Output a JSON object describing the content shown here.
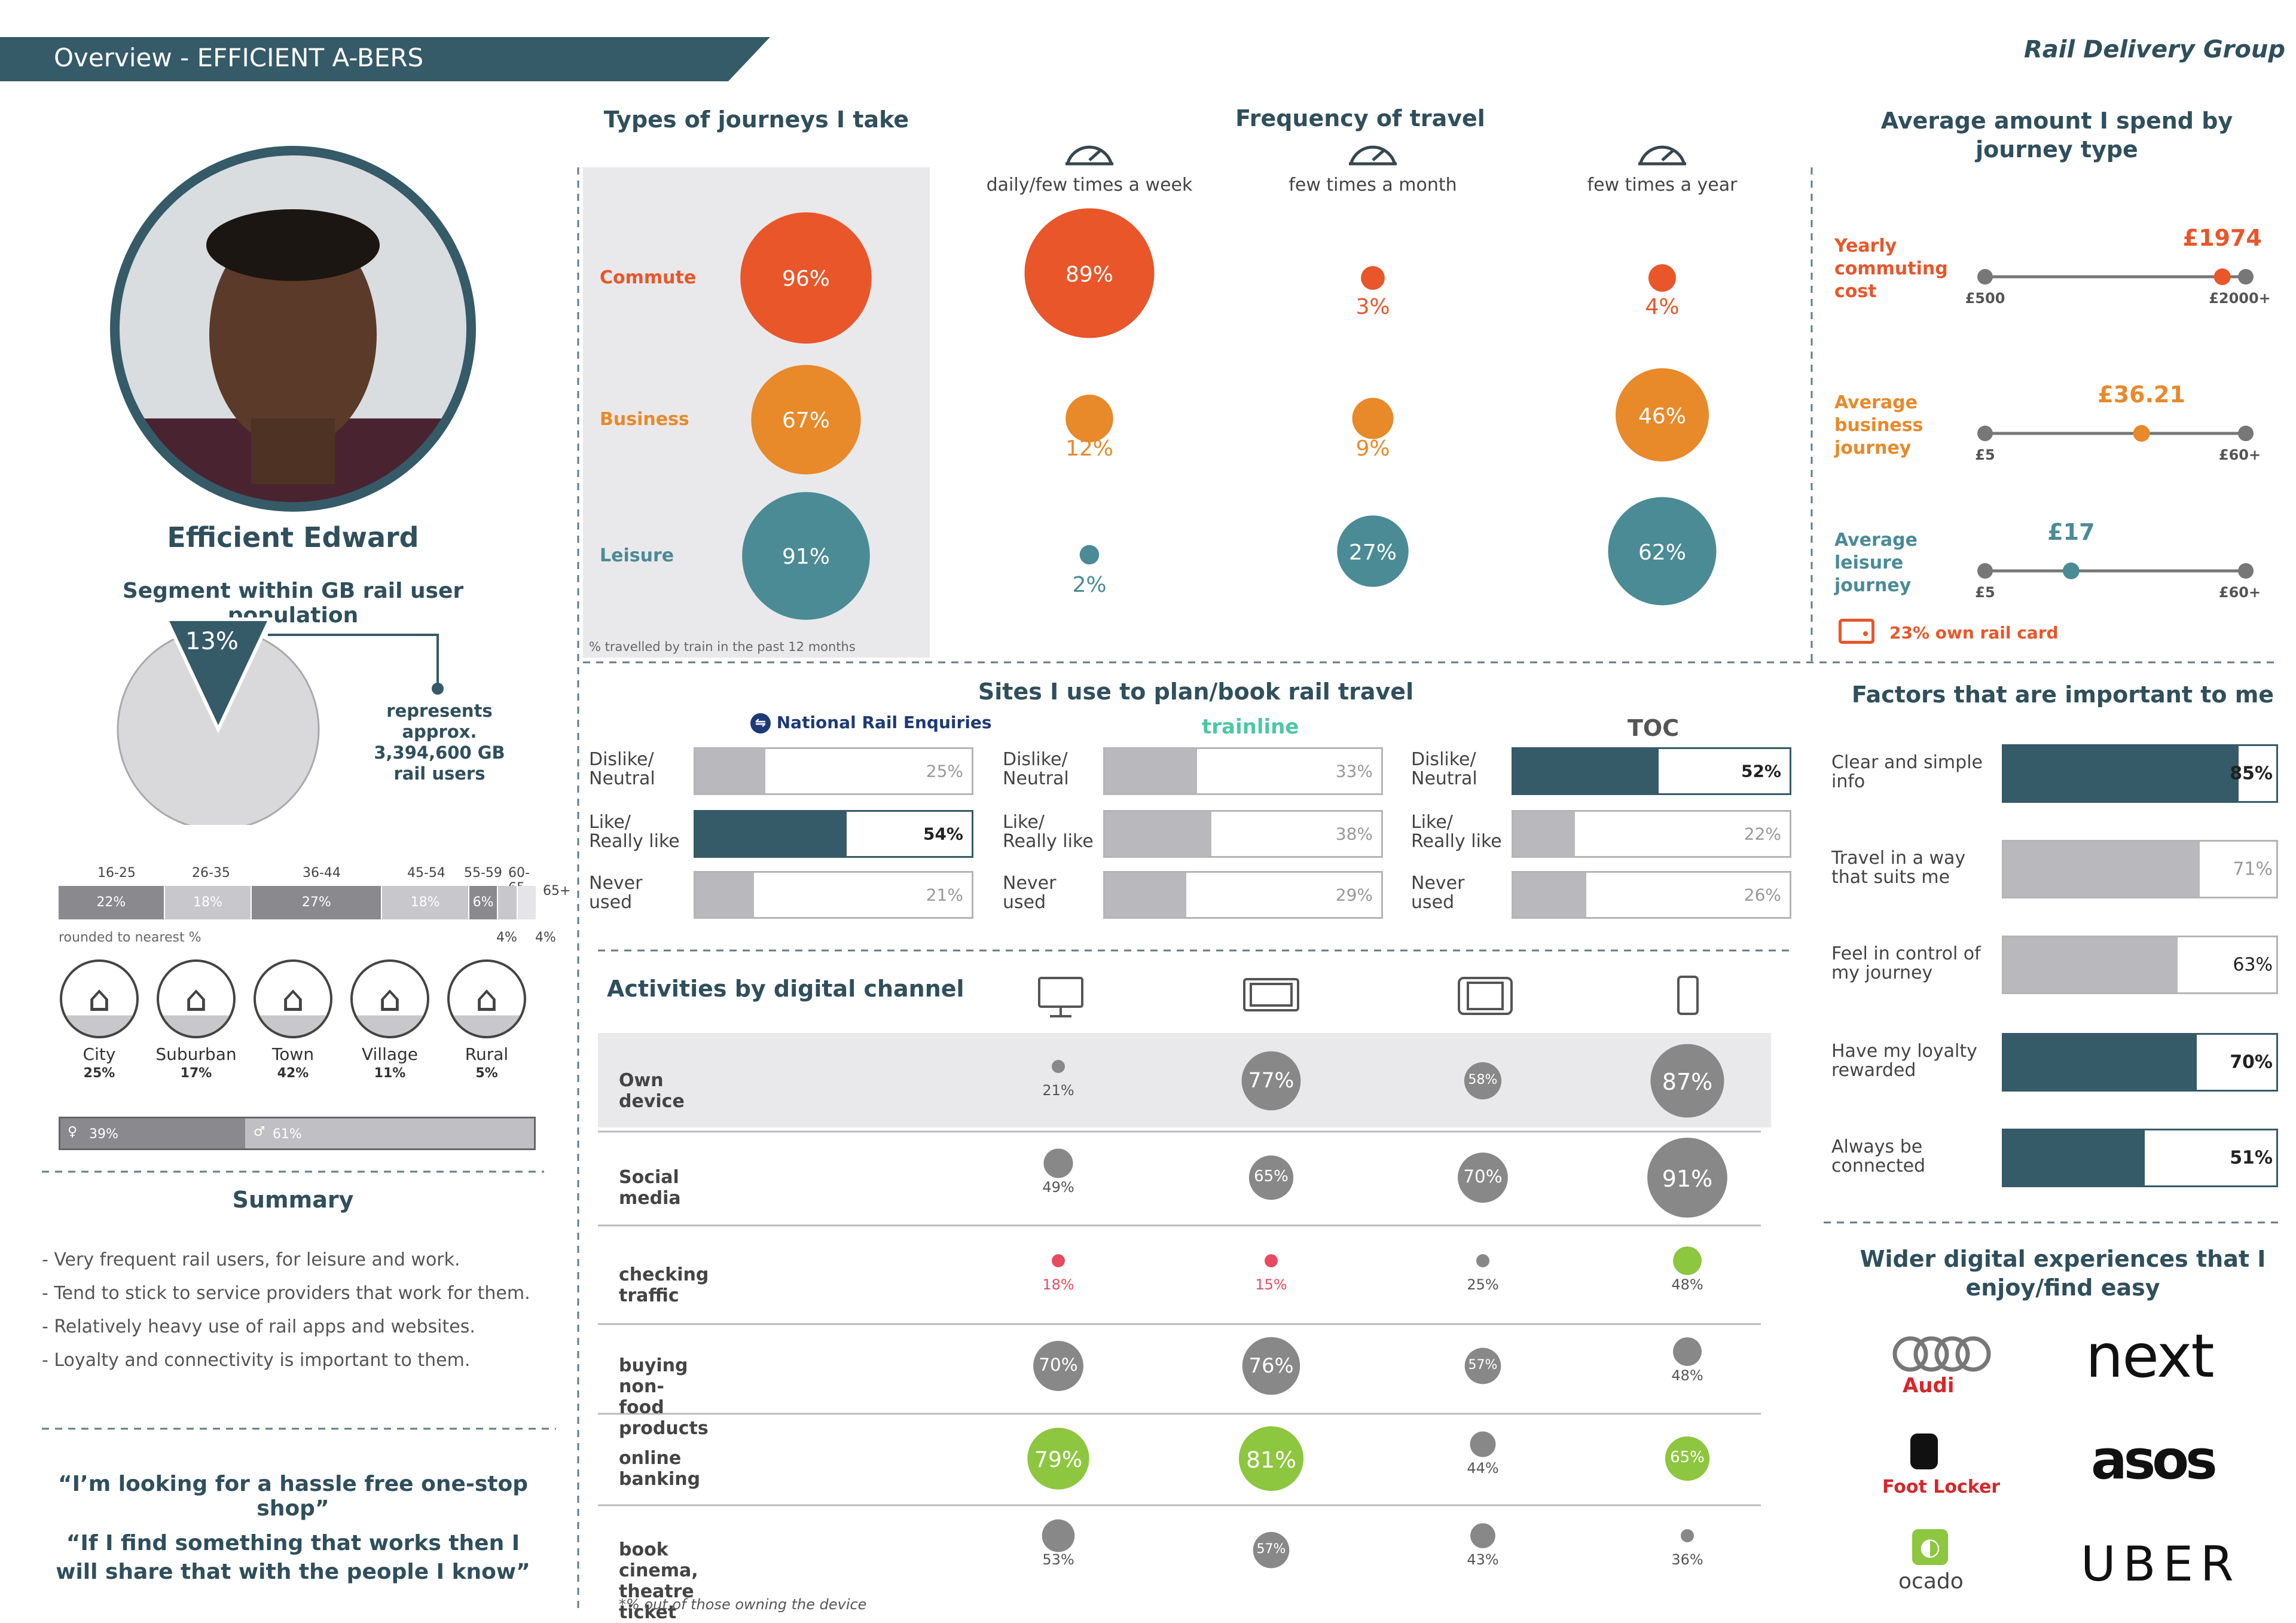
{
  "header": {
    "title": "Overview - EFFICIENT A-BERS",
    "brand": "Rail Delivery Group"
  },
  "persona": {
    "name": "Efficient Edward",
    "segment_title": "Segment within GB rail user population",
    "segment_pct": "13%",
    "segment_value": 13,
    "represents": "represents approx. 3,394,600 GB rail users",
    "age_labels": [
      "16-25",
      "26-35",
      "36-44",
      "45-54",
      "55-59",
      "60-65",
      "65+"
    ],
    "age_values": [
      "22%",
      "18%",
      "27%",
      "18%",
      "6%",
      "4%",
      "4%"
    ],
    "age_fractions": [
      22,
      18,
      27,
      18,
      6,
      4,
      4
    ],
    "rounded_note": "rounded to nearest %",
    "areas": [
      {
        "label": "City",
        "pct": "25%"
      },
      {
        "label": "Suburban",
        "pct": "17%"
      },
      {
        "label": "Town",
        "pct": "42%"
      },
      {
        "label": "Village",
        "pct": "11%"
      },
      {
        "label": "Rural",
        "pct": "5%"
      }
    ],
    "gender": {
      "female": "39%",
      "male": "61%",
      "female_value": 39
    }
  },
  "summary": {
    "title": "Summary",
    "points": [
      "- Very frequent rail users, for leisure and work.",
      "- Tend to stick to  service providers that work for them.",
      "- Relatively heavy use of rail apps and websites.",
      "- Loyalty and connectivity is important to them."
    ],
    "quote1": "“I’m looking for a hassle free one-stop shop”",
    "quote2": "“If I find something that works then I will share that with the people I know”"
  },
  "journeys": {
    "title": "Types of journeys I take",
    "note": "% travelled by train in the past 12 months",
    "rows": [
      {
        "label": "Commute",
        "pct": "96%",
        "value": 96,
        "color": "#e8562a"
      },
      {
        "label": "Business",
        "pct": "67%",
        "value": 67,
        "color": "#e8892a"
      },
      {
        "label": "Leisure",
        "pct": "91%",
        "value": 91,
        "color": "#4a8b96"
      }
    ]
  },
  "frequency": {
    "title": "Frequency of travel",
    "columns": [
      "daily/few times a week",
      "few times a month",
      "few times a year"
    ],
    "rows": [
      {
        "values": [
          "89%",
          "3%",
          "4%"
        ],
        "nums": [
          89,
          3,
          4
        ],
        "color": "#e8562a"
      },
      {
        "values": [
          "12%",
          "9%",
          "46%"
        ],
        "nums": [
          12,
          9,
          46
        ],
        "color": "#e8892a"
      },
      {
        "values": [
          "2%",
          "27%",
          "62%"
        ],
        "nums": [
          2,
          27,
          62
        ],
        "color": "#4a8b96"
      }
    ]
  },
  "spend": {
    "title": "Average amount I spend by journey type",
    "items": [
      {
        "label": "Yearly commuting cost",
        "value": "£1974",
        "min": "£500",
        "max": "£2000+",
        "frac": 0.91,
        "color": "#e8562a"
      },
      {
        "label": "Average business journey",
        "value": "£36.21",
        "min": "£5",
        "max": "£60+",
        "frac": 0.6,
        "color": "#e8892a"
      },
      {
        "label": "Average leisure journey",
        "value": "£17",
        "min": "£5",
        "max": "£60+",
        "frac": 0.33,
        "color": "#4a8b96"
      }
    ],
    "railcard": "23% own rail card"
  },
  "sites": {
    "title": "Sites I use to plan/book rail travel",
    "providers": [
      {
        "name": "National Rail Enquiries",
        "rows": [
          {
            "label": "Dislike/ Neutral",
            "pct": "25%",
            "v": 25,
            "hi": false
          },
          {
            "label": "Like/ Really like",
            "pct": "54%",
            "v": 54,
            "hi": true
          },
          {
            "label": "Never used",
            "pct": "21%",
            "v": 21,
            "hi": false
          }
        ]
      },
      {
        "name": "trainline",
        "rows": [
          {
            "label": "Dislike/ Neutral",
            "pct": "33%",
            "v": 33,
            "hi": false
          },
          {
            "label": "Like/ Really like",
            "pct": "38%",
            "v": 38,
            "hi": false
          },
          {
            "label": "Never used",
            "pct": "29%",
            "v": 29,
            "hi": false
          }
        ]
      },
      {
        "name": "TOC",
        "rows": [
          {
            "label": "Dislike/ Neutral",
            "pct": "52%",
            "v": 52,
            "hi": true
          },
          {
            "label": "Like/ Really like",
            "pct": "22%",
            "v": 22,
            "hi": false
          },
          {
            "label": "Never used",
            "pct": "26%",
            "v": 26,
            "hi": false
          }
        ]
      }
    ]
  },
  "activities": {
    "title": "Activities by digital channel",
    "note": "*% out of those owning the device",
    "rows": [
      {
        "label": "Own device",
        "vals": [
          "21%",
          "77%",
          "58%",
          "87%"
        ],
        "nums": [
          21,
          77,
          58,
          87
        ],
        "col": [
          "g",
          "g",
          "g",
          "g"
        ]
      },
      {
        "label": "Social media",
        "vals": [
          "49%",
          "65%",
          "70%",
          "91%"
        ],
        "nums": [
          49,
          65,
          70,
          91
        ],
        "col": [
          "g",
          "g",
          "g",
          "g"
        ]
      },
      {
        "label": "checking traffic",
        "vals": [
          "18%",
          "15%",
          "25%",
          "48%"
        ],
        "nums": [
          18,
          15,
          25,
          48
        ],
        "col": [
          "r",
          "r",
          "g",
          "l"
        ]
      },
      {
        "label": "buying non-food products",
        "vals": [
          "70%",
          "76%",
          "57%",
          "48%"
        ],
        "nums": [
          70,
          76,
          57,
          48
        ],
        "col": [
          "g",
          "g",
          "g",
          "g"
        ]
      },
      {
        "label": "online banking",
        "vals": [
          "79%",
          "81%",
          "44%",
          "65%"
        ],
        "nums": [
          79,
          81,
          44,
          65
        ],
        "col": [
          "l",
          "l",
          "g",
          "l"
        ]
      },
      {
        "label": "book cinema, theatre ticket",
        "vals": [
          "53%",
          "57%",
          "43%",
          "36%"
        ],
        "nums": [
          53,
          57,
          43,
          36
        ],
        "col": [
          "g",
          "g",
          "g",
          "g"
        ]
      }
    ]
  },
  "factors": {
    "title": "Factors that are important to me",
    "items": [
      {
        "label": "Clear and simple info",
        "pct": "85%",
        "v": 85,
        "hi": true
      },
      {
        "label": "Travel in a way that suits me",
        "pct": "71%",
        "v": 71,
        "hi": false
      },
      {
        "label": "Feel in control of my journey",
        "pct": "63%",
        "v": 63,
        "hi": false
      },
      {
        "label": "Have my loyalty rewarded",
        "pct": "70%",
        "v": 70,
        "hi": true
      },
      {
        "label": "Always be connected",
        "pct": "51%",
        "v": 51,
        "hi": true
      }
    ]
  },
  "digital": {
    "title": "Wider digital experiences that I enjoy/find easy",
    "brands": [
      "Audi",
      "next",
      "asos",
      "Foot Locker",
      "ocado",
      "UBER"
    ]
  },
  "colors": {
    "dark": "#355a68",
    "grey": "#b8b8bd",
    "orange": "#e8562a",
    "amber": "#e8892a",
    "teal": "#4a8b96",
    "lime": "#8dc63f",
    "red": "#e84a5f"
  }
}
